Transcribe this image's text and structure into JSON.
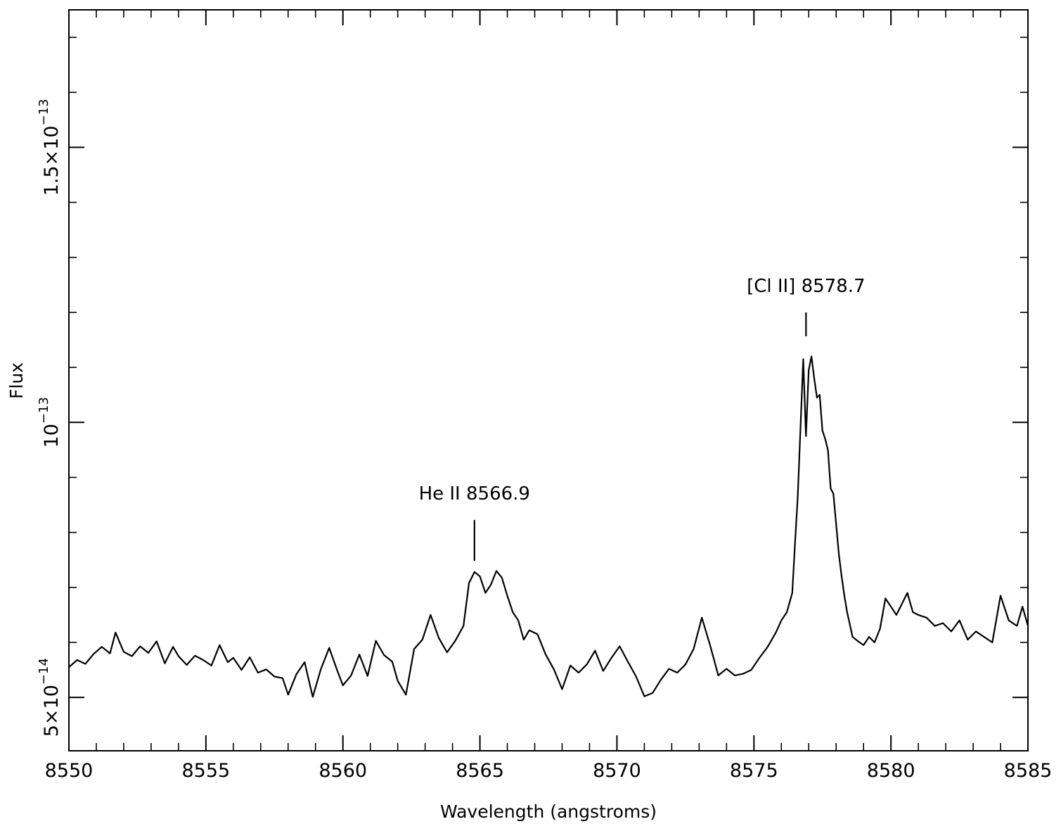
{
  "chart_data": {
    "type": "line",
    "title": "",
    "xlabel": "Wavelength (angstroms)",
    "ylabel": "Flux",
    "xlim": [
      8550,
      8585
    ],
    "ylim": [
      4.03e-14,
      1.75e-13
    ],
    "x_ticks": [
      {
        "value": 8550,
        "label": "8550"
      },
      {
        "value": 8555,
        "label": "8555"
      },
      {
        "value": 8560,
        "label": "8560"
      },
      {
        "value": 8565,
        "label": "8565"
      },
      {
        "value": 8570,
        "label": "8570"
      },
      {
        "value": 8575,
        "label": "8575"
      },
      {
        "value": 8580,
        "label": "8580"
      },
      {
        "value": 8585,
        "label": "8585"
      }
    ],
    "y_ticks": [
      {
        "value": 5e-14,
        "mantissa": "5×10",
        "exponent": "−14"
      },
      {
        "value": 1e-13,
        "mantissa": "10",
        "exponent": "−13"
      },
      {
        "value": 1.5e-13,
        "mantissa": "1.5×10",
        "exponent": "−13"
      }
    ],
    "grid": false,
    "annotations": [
      {
        "text": "He II 8566.9",
        "x": 8564.8
      },
      {
        "text": "[Cl II] 8578.7",
        "x": 8576.9
      }
    ],
    "series": [
      {
        "x": [
          8550.0,
          8550.3,
          8550.6,
          8550.9,
          8551.2,
          8551.5,
          8551.7,
          8552.0,
          8552.3,
          8552.6,
          8552.9,
          8553.2,
          8553.5,
          8553.8,
          8554.0,
          8554.3,
          8554.6,
          8554.9,
          8555.2,
          8555.5,
          8555.8,
          8556.0,
          8556.3,
          8556.6,
          8556.9,
          8557.2,
          8557.5,
          8557.8,
          8558.0,
          8558.3,
          8558.6,
          8558.9,
          8559.2,
          8559.5,
          8559.8,
          8560.0,
          8560.3,
          8560.6,
          8560.9,
          8561.2,
          8561.5,
          8561.8,
          8562.0,
          8562.3,
          8562.6,
          8562.9,
          8563.2,
          8563.5,
          8563.8,
          8564.1,
          8564.4,
          8564.6,
          8564.8,
          8565.0,
          8565.2,
          8565.4,
          8565.6,
          8565.8,
          8566.0,
          8566.2,
          8566.4,
          8566.6,
          8566.8,
          8567.1,
          8567.4,
          8567.7,
          8568.0,
          8568.3,
          8568.6,
          8568.9,
          8569.2,
          8569.5,
          8569.8,
          8570.1,
          8570.4,
          8570.7,
          8571.0,
          8571.3,
          8571.6,
          8571.9,
          8572.2,
          8572.5,
          8572.8,
          8573.1,
          8573.4,
          8573.7,
          8574.0,
          8574.3,
          8574.6,
          8574.9,
          8575.2,
          8575.5,
          8575.8,
          8576.0,
          8576.2,
          8576.4,
          8576.5,
          8576.6,
          8576.7,
          8576.8,
          8576.9,
          8577.0,
          8577.1,
          8577.2,
          8577.3,
          8577.4,
          8577.5,
          8577.6,
          8577.7,
          8577.8,
          8577.9,
          8578.0,
          8578.1,
          8578.2,
          8578.3,
          8578.4,
          8578.6,
          8578.8,
          8579.0,
          8579.2,
          8579.4,
          8579.6,
          8579.8,
          8580.0,
          8580.2,
          8580.4,
          8580.6,
          8580.8,
          8581.0,
          8581.3,
          8581.6,
          8581.9,
          8582.2,
          8582.5,
          8582.8,
          8583.1,
          8583.4,
          8583.7,
          8584.0,
          8584.3,
          8584.6,
          8584.8,
          8585.0
        ],
        "y": [
          5.55e-14,
          5.68e-14,
          5.61e-14,
          5.79e-14,
          5.92e-14,
          5.8e-14,
          6.18e-14,
          5.83e-14,
          5.75e-14,
          5.93e-14,
          5.81e-14,
          6.02e-14,
          5.62e-14,
          5.92e-14,
          5.75e-14,
          5.59e-14,
          5.76e-14,
          5.68e-14,
          5.58e-14,
          5.95e-14,
          5.64e-14,
          5.72e-14,
          5.5e-14,
          5.73e-14,
          5.45e-14,
          5.51e-14,
          5.38e-14,
          5.35e-14,
          5.05e-14,
          5.42e-14,
          5.64e-14,
          5.01e-14,
          5.52e-14,
          5.9e-14,
          5.48e-14,
          5.22e-14,
          5.4e-14,
          5.78e-14,
          5.39e-14,
          6.03e-14,
          5.77e-14,
          5.65e-14,
          5.3e-14,
          5.05e-14,
          5.88e-14,
          6.05e-14,
          6.5e-14,
          6.08e-14,
          5.82e-14,
          6.03e-14,
          6.3e-14,
          7.08e-14,
          7.28e-14,
          7.2e-14,
          6.9e-14,
          7.05e-14,
          7.3e-14,
          7.18e-14,
          6.85e-14,
          6.55e-14,
          6.4e-14,
          6.05e-14,
          6.22e-14,
          6.15e-14,
          5.78e-14,
          5.51e-14,
          5.15e-14,
          5.58e-14,
          5.45e-14,
          5.6e-14,
          5.85e-14,
          5.48e-14,
          5.72e-14,
          5.93e-14,
          5.65e-14,
          5.38e-14,
          5.02e-14,
          5.08e-14,
          5.32e-14,
          5.52e-14,
          5.45e-14,
          5.6e-14,
          5.88e-14,
          6.45e-14,
          5.95e-14,
          5.4e-14,
          5.52e-14,
          5.4e-14,
          5.43e-14,
          5.5e-14,
          5.72e-14,
          5.92e-14,
          6.18e-14,
          6.4e-14,
          6.55e-14,
          6.9e-14,
          7.8e-14,
          8.65e-14,
          9.9e-14,
          1.115e-13,
          9.75e-14,
          1.095e-13,
          1.12e-13,
          1.08e-13,
          1.045e-13,
          1.05e-13,
          9.85e-14,
          9.7e-14,
          9.5e-14,
          8.8e-14,
          8.7e-14,
          8.15e-14,
          7.6e-14,
          7.2e-14,
          6.85e-14,
          6.55e-14,
          6.1e-14,
          6.02e-14,
          5.95e-14,
          6.1e-14,
          6e-14,
          6.25e-14,
          6.8e-14,
          6.65e-14,
          6.5e-14,
          6.7e-14,
          6.9e-14,
          6.55e-14,
          6.5e-14,
          6.45e-14,
          6.3e-14,
          6.35e-14,
          6.2e-14,
          6.4e-14,
          6.05e-14,
          6.2e-14,
          6.1e-14,
          6e-14,
          6.85e-14,
          6.4e-14,
          6.3e-14,
          6.65e-14,
          6.3e-14
        ]
      }
    ]
  }
}
